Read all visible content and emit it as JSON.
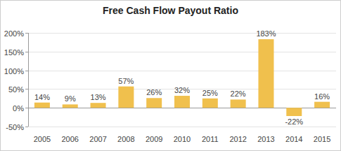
{
  "chart_data": {
    "type": "bar",
    "title": "Free Cash Flow Payout Ratio",
    "categories": [
      "2005",
      "2006",
      "2007",
      "2008",
      "2009",
      "2010",
      "2011",
      "2012",
      "2013",
      "2014",
      "2015"
    ],
    "values": [
      14,
      9,
      13,
      57,
      26,
      32,
      25,
      22,
      183,
      -22,
      16
    ],
    "value_labels": [
      "14%",
      "9%",
      "13%",
      "57%",
      "26%",
      "32%",
      "25%",
      "22%",
      "183%",
      "-22%",
      "16%"
    ],
    "color": "#f0c04d",
    "ylim": [
      -50,
      200
    ],
    "yticks": [
      {
        "value": -50,
        "label": "-50%"
      },
      {
        "value": 0,
        "label": "0%"
      },
      {
        "value": 50,
        "label": "50%"
      },
      {
        "value": 100,
        "label": "100%"
      },
      {
        "value": 150,
        "label": "150%"
      },
      {
        "value": 200,
        "label": "200%"
      }
    ],
    "grid": true,
    "data_labels": true
  }
}
